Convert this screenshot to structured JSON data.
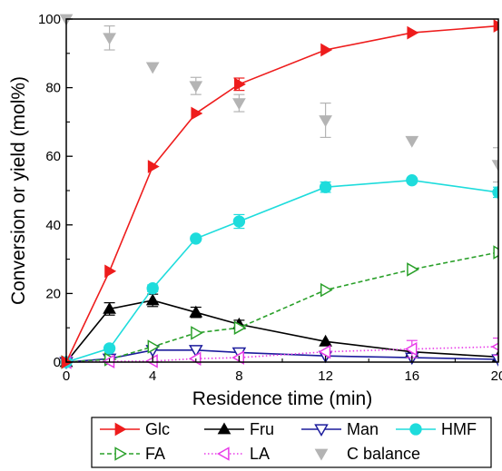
{
  "chart_data": {
    "type": "line",
    "title": "",
    "xlabel": "Residence time (min)",
    "ylabel": "Conversion or yield (mol%)",
    "xlim": [
      0,
      20
    ],
    "ylim": [
      0,
      100
    ],
    "xticks": [
      0,
      4,
      8,
      12,
      16,
      20
    ],
    "yticks": [
      0,
      20,
      40,
      60,
      80,
      100
    ],
    "grid": false,
    "legend_position": "bottom",
    "series": [
      {
        "name": "Glc",
        "color": "#ee1c1c",
        "marker": "triangle-right-filled",
        "line": "solid",
        "x": [
          0,
          2,
          4,
          6,
          8,
          12,
          16,
          20
        ],
        "y": [
          0,
          26.5,
          57,
          72.5,
          81,
          91,
          96,
          98
        ],
        "err": [
          0,
          0,
          0,
          0,
          1.8,
          0,
          0,
          0
        ]
      },
      {
        "name": "Fru",
        "color": "#000000",
        "marker": "triangle-up-filled",
        "line": "solid",
        "x": [
          0,
          2,
          4,
          6,
          8,
          12,
          16,
          20
        ],
        "y": [
          0,
          15.5,
          18,
          14.5,
          11,
          6,
          3,
          1.5
        ],
        "err": [
          0,
          1.8,
          1.8,
          1.5,
          1.2,
          0,
          0,
          0
        ]
      },
      {
        "name": "Man",
        "color": "#1c1c9c",
        "marker": "triangle-down-open",
        "line": "solid",
        "x": [
          0,
          2,
          4,
          6,
          8,
          12,
          16,
          20
        ],
        "y": [
          0,
          1,
          3.5,
          3.5,
          2.8,
          1.8,
          1.3,
          0.8
        ],
        "err": [
          0,
          0,
          0,
          0,
          0,
          0,
          0,
          0
        ]
      },
      {
        "name": "HMF",
        "color": "#1edcdc",
        "marker": "circle-filled",
        "line": "solid",
        "x": [
          0,
          2,
          4,
          6,
          8,
          12,
          16,
          20
        ],
        "y": [
          0,
          4,
          21.5,
          36,
          41,
          51,
          53,
          49.5
        ],
        "err": [
          0,
          0,
          1,
          0,
          2,
          1.5,
          0,
          1.5
        ]
      },
      {
        "name": "FA",
        "color": "#2aa02a",
        "marker": "triangle-right-open",
        "line": "dashed",
        "x": [
          0,
          2,
          4,
          6,
          8,
          12,
          16,
          20
        ],
        "y": [
          0,
          0.8,
          4.5,
          8.5,
          10,
          21,
          27,
          32
        ],
        "err": [
          0,
          0,
          0,
          0,
          0,
          0,
          0,
          0
        ]
      },
      {
        "name": "LA",
        "color": "#e83ae8",
        "marker": "triangle-left-open",
        "line": "dotted",
        "x": [
          0,
          2,
          4,
          6,
          8,
          12,
          16,
          20
        ],
        "y": [
          0,
          0.2,
          0.3,
          1,
          1.3,
          3,
          3.8,
          4.5
        ],
        "err": [
          0,
          0,
          0,
          0,
          0,
          0,
          2.5,
          2.5
        ]
      },
      {
        "name": "C balance",
        "color": "#b4b4b4",
        "marker": "triangle-down-filled",
        "line": "none",
        "x": [
          0,
          2,
          4,
          6,
          8,
          12,
          16,
          20
        ],
        "y": [
          100,
          94.5,
          86,
          80.5,
          75.5,
          70.5,
          64.5,
          57.5
        ],
        "err": [
          0,
          3.5,
          0,
          2.5,
          2.5,
          5,
          0,
          5
        ]
      }
    ]
  }
}
